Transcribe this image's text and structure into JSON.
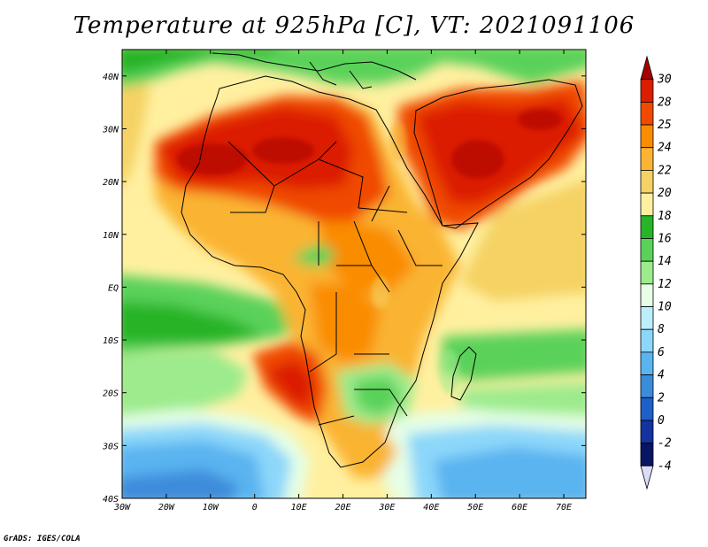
{
  "title": "Temperature at 925hPa [C], VT: 2021091106",
  "credit": "GrADS: IGES/COLA",
  "map": {
    "lon_range": [
      -30,
      75
    ],
    "lat_range": [
      -40,
      45
    ],
    "x_ticks": [
      {
        "lon": -30,
        "label": "30W"
      },
      {
        "lon": -20,
        "label": "20W"
      },
      {
        "lon": -10,
        "label": "10W"
      },
      {
        "lon": 0,
        "label": "0"
      },
      {
        "lon": 10,
        "label": "10E"
      },
      {
        "lon": 20,
        "label": "20E"
      },
      {
        "lon": 30,
        "label": "30E"
      },
      {
        "lon": 40,
        "label": "40E"
      },
      {
        "lon": 50,
        "label": "50E"
      },
      {
        "lon": 60,
        "label": "60E"
      },
      {
        "lon": 70,
        "label": "70E"
      }
    ],
    "y_ticks": [
      {
        "lat": 40,
        "label": "40N"
      },
      {
        "lat": 30,
        "label": "30N"
      },
      {
        "lat": 20,
        "label": "20N"
      },
      {
        "lat": 10,
        "label": "10N"
      },
      {
        "lat": 0,
        "label": "EQ"
      },
      {
        "lat": -10,
        "label": "10S"
      },
      {
        "lat": -20,
        "label": "20S"
      },
      {
        "lat": -30,
        "label": "30S"
      },
      {
        "lat": -40,
        "label": "40S"
      }
    ]
  },
  "colorbar": {
    "labels": [
      "30",
      "28",
      "25",
      "24",
      "22",
      "20",
      "18",
      "16",
      "14",
      "12",
      "10",
      "8",
      "6",
      "4",
      "2",
      "0",
      "-2",
      "-4"
    ],
    "colors": [
      "#a50000",
      "#dc1e00",
      "#f04a00",
      "#fa8c00",
      "#fab432",
      "#f5d264",
      "#fff0a0",
      "#28b428",
      "#5ad25a",
      "#9ceb8c",
      "#e6ffe6",
      "#bceefe",
      "#8cd7fa",
      "#5ab4f0",
      "#3c8cdc",
      "#1e5fc8",
      "#1432a0",
      "#0a1464",
      "#dcdcfa"
    ]
  }
}
